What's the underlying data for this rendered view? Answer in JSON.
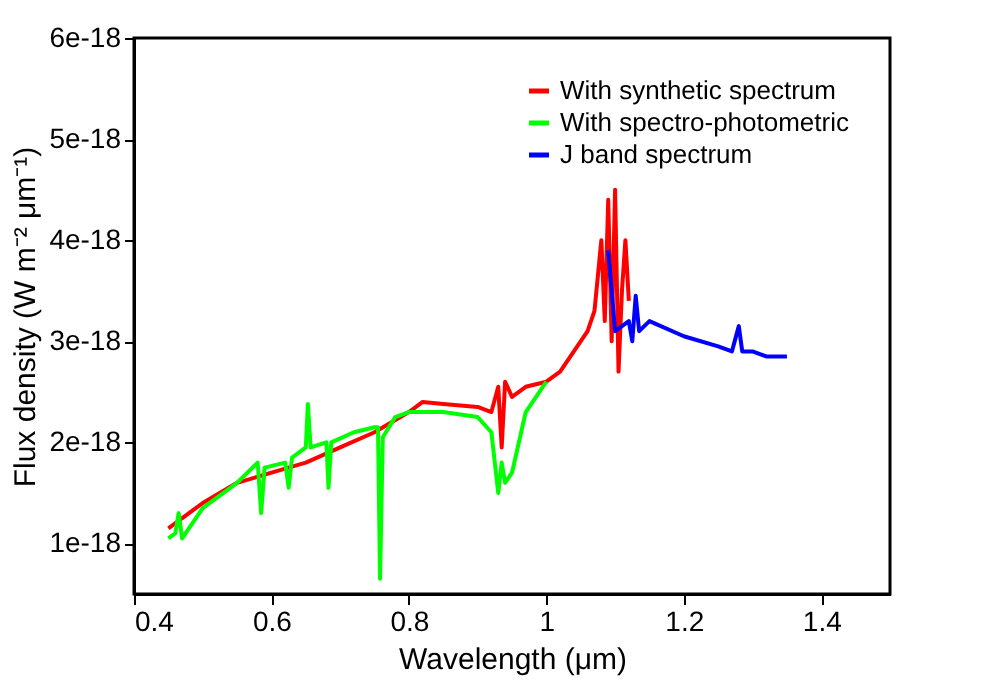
{
  "chart_data": {
    "type": "line",
    "xlabel": "Wavelength (μm)",
    "ylabel": "Flux density (W m⁻² μm⁻¹)",
    "xlim": [
      0.4,
      1.5
    ],
    "xticks": [
      0.4,
      0.6,
      0.8,
      1,
      1.2,
      1.4
    ],
    "ylim": [
      5e-19,
      6e-18
    ],
    "yticks": [
      {
        "value": 1e-18,
        "label": "1e-18"
      },
      {
        "value": 2e-18,
        "label": "2e-18"
      },
      {
        "value": 3e-18,
        "label": "3e-18"
      },
      {
        "value": 4e-18,
        "label": "4e-18"
      },
      {
        "value": 5e-18,
        "label": "5e-18"
      },
      {
        "value": 6e-18,
        "label": "6e-18"
      }
    ],
    "grid": false,
    "legend": "top right",
    "marker": "none",
    "line_style": "solid",
    "series": [
      {
        "name": "With synthetic spectrum",
        "color": "#ff0000",
        "x": [
          0.45,
          0.5,
          0.55,
          0.6,
          0.65,
          0.7,
          0.75,
          0.8,
          0.82,
          0.85,
          0.9,
          0.92,
          0.93,
          0.935,
          0.94,
          0.95,
          0.97,
          1.0,
          1.02,
          1.04,
          1.06,
          1.07,
          1.08,
          1.085,
          1.09,
          1.095,
          1.1,
          1.105,
          1.11,
          1.115,
          1.12
        ],
        "values": [
          1.15e-18,
          1.4e-18,
          1.6e-18,
          1.7e-18,
          1.8e-18,
          1.95e-18,
          2.1e-18,
          2.3e-18,
          2.4e-18,
          2.38e-18,
          2.35e-18,
          2.3e-18,
          2.55e-18,
          1.95e-18,
          2.6e-18,
          2.45e-18,
          2.55e-18,
          2.6e-18,
          2.7e-18,
          2.9e-18,
          3.1e-18,
          3.3e-18,
          4e-18,
          3.2e-18,
          4.4e-18,
          3e-18,
          4.5e-18,
          2.7e-18,
          3.5e-18,
          4e-18,
          3.4e-18
        ]
      },
      {
        "name": "With spectro-photometric",
        "color": "#00ff00",
        "x": [
          0.45,
          0.46,
          0.465,
          0.47,
          0.5,
          0.55,
          0.58,
          0.585,
          0.59,
          0.62,
          0.625,
          0.63,
          0.65,
          0.653,
          0.657,
          0.68,
          0.683,
          0.687,
          0.72,
          0.75,
          0.755,
          0.758,
          0.762,
          0.78,
          0.8,
          0.85,
          0.9,
          0.92,
          0.93,
          0.935,
          0.94,
          0.95,
          0.97,
          1.0
        ],
        "values": [
          1.05e-18,
          1.1e-18,
          1.3e-18,
          1.05e-18,
          1.35e-18,
          1.6e-18,
          1.8e-18,
          1.3e-18,
          1.75e-18,
          1.8e-18,
          1.55e-18,
          1.85e-18,
          1.95e-18,
          2.38e-18,
          1.95e-18,
          2e-18,
          1.55e-18,
          2e-18,
          2.1e-18,
          2.15e-18,
          2.15e-18,
          6.5e-19,
          2.05e-18,
          2.25e-18,
          2.3e-18,
          2.3e-18,
          2.25e-18,
          2.1e-18,
          1.5e-18,
          1.8e-18,
          1.6e-18,
          1.7e-18,
          2.3e-18,
          2.6e-18
        ]
      },
      {
        "name": "J band spectrum",
        "color": "#0000ff",
        "x": [
          1.09,
          1.095,
          1.1,
          1.12,
          1.125,
          1.13,
          1.135,
          1.15,
          1.2,
          1.25,
          1.27,
          1.28,
          1.285,
          1.3,
          1.32,
          1.35
        ],
        "values": [
          3.9e-18,
          3.5e-18,
          3.1e-18,
          3.2e-18,
          3e-18,
          3.45e-18,
          3.1e-18,
          3.2e-18,
          3.05e-18,
          2.95e-18,
          2.9e-18,
          3.15e-18,
          2.9e-18,
          2.9e-18,
          2.85e-18,
          2.85e-18
        ]
      }
    ]
  }
}
